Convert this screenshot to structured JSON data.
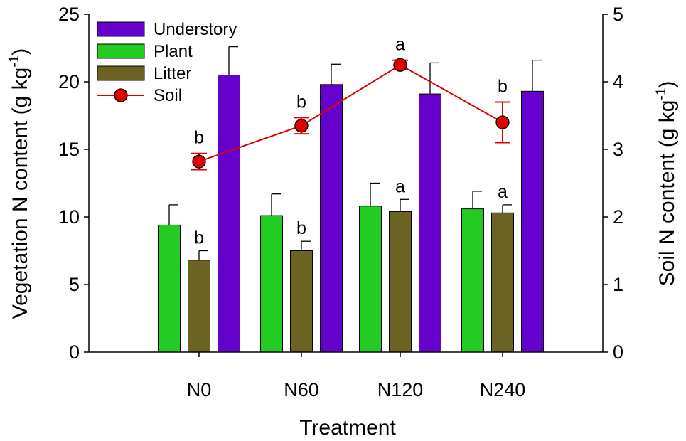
{
  "chart_data": {
    "type": "bar",
    "categories": [
      "N0",
      "N60",
      "N120",
      "N240"
    ],
    "xlabel": "Treatment",
    "ylabel": "Vegetation N content (g kg",
    "ylabel_sup": "-1",
    "ylabel_close": ")",
    "y2label": "Soil N content (g kg",
    "y2label_sup": "-1",
    "y2label_close": ")",
    "ylim": [
      0,
      25
    ],
    "yticks": [
      0,
      5,
      10,
      15,
      20,
      25
    ],
    "y2lim": [
      0,
      5
    ],
    "y2ticks": [
      0,
      1,
      2,
      3,
      4,
      5
    ],
    "grid": false,
    "legend_position": "top-left",
    "series": [
      {
        "name": "Plant",
        "kind": "bar",
        "axis": "left",
        "color": "#22cc22",
        "values": [
          9.4,
          10.1,
          10.8,
          10.6
        ],
        "errors": [
          1.5,
          1.6,
          1.7,
          1.3
        ],
        "letters": [
          "",
          "",
          "",
          ""
        ]
      },
      {
        "name": "Litter",
        "kind": "bar",
        "axis": "left",
        "color": "#6b6322",
        "values": [
          6.8,
          7.5,
          10.4,
          10.3
        ],
        "errors": [
          0.7,
          0.7,
          0.9,
          0.6
        ],
        "letters": [
          "b",
          "b",
          "a",
          "a"
        ]
      },
      {
        "name": "Understory",
        "kind": "bar",
        "axis": "left",
        "color": "#6600cc",
        "values": [
          20.5,
          19.8,
          19.1,
          19.3
        ],
        "errors": [
          2.1,
          1.5,
          2.3,
          2.3
        ],
        "letters": [
          "",
          "",
          "",
          ""
        ]
      },
      {
        "name": "Soil",
        "kind": "line",
        "axis": "right",
        "color": "#e00000",
        "values": [
          2.82,
          3.35,
          4.25,
          3.4
        ],
        "errors": [
          0.12,
          0.12,
          0.07,
          0.3
        ],
        "letters": [
          "b",
          "b",
          "a",
          "b"
        ]
      }
    ],
    "legend": [
      "Understory",
      "Plant",
      "Litter",
      "Soil"
    ]
  }
}
